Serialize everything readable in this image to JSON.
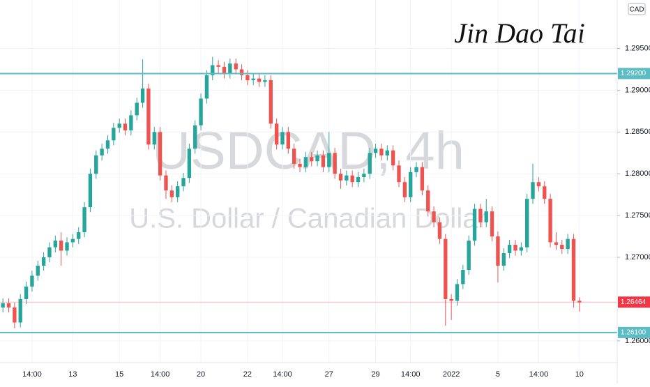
{
  "chart_data": {
    "type": "candlestick",
    "title": "USDCAD, 4h",
    "subtitle": "U.S. Dollar / Canadian Dollar",
    "author": "Jin Dao Tai",
    "currency": "CAD",
    "up_color": "#26a69a",
    "down_color": "#ef5350",
    "ylim": [
      1.2574,
      1.3008
    ],
    "yticks": [
      {
        "value": 1.295,
        "label": "1.29500"
      },
      {
        "value": 1.29,
        "label": "1.29000"
      },
      {
        "value": 1.285,
        "label": "1.28500"
      },
      {
        "value": 1.28,
        "label": "1.28000"
      },
      {
        "value": 1.275,
        "label": "1.27500"
      },
      {
        "value": 1.27,
        "label": "1.27000"
      },
      {
        "value": 1.26,
        "label": "1.26000"
      }
    ],
    "levels": [
      {
        "value": 1.292,
        "label": "1.29200",
        "color": "#5bbcc4"
      },
      {
        "value": 1.261,
        "label": "1.26100",
        "color": "#5bbcc4"
      }
    ],
    "last_price": {
      "value": 1.26464,
      "label": "1.26464",
      "color": "#f23645"
    },
    "categories": [
      null,
      null,
      null,
      null,
      null,
      "14:00",
      null,
      null,
      null,
      null,
      null,
      null,
      "13",
      null,
      null,
      null,
      null,
      null,
      null,
      null,
      "15",
      null,
      null,
      null,
      null,
      null,
      null,
      "14:00",
      null,
      null,
      null,
      null,
      null,
      null,
      "20",
      null,
      null,
      null,
      null,
      null,
      null,
      null,
      "22",
      null,
      null,
      null,
      null,
      null,
      "14:00",
      null,
      null,
      null,
      null,
      null,
      null,
      null,
      "27",
      null,
      null,
      null,
      null,
      null,
      null,
      null,
      "29",
      null,
      null,
      null,
      null,
      null,
      "14:00",
      null,
      null,
      null,
      null,
      null,
      null,
      "2022",
      null,
      null,
      null,
      null,
      null,
      null,
      null,
      "5",
      null,
      null,
      null,
      null,
      null,
      null,
      "14:00",
      null,
      null,
      null,
      null,
      null,
      null,
      "10"
    ],
    "open": [
      1.264,
      1.2645,
      1.264,
      1.2622,
      1.265,
      1.2665,
      1.2678,
      1.269,
      1.27,
      1.2712,
      1.272,
      1.2708,
      1.2718,
      1.2722,
      1.273,
      1.276,
      1.28,
      1.2822,
      1.283,
      1.284,
      1.2855,
      1.286,
      1.2852,
      1.287,
      1.2885,
      1.2902,
      1.2835,
      1.285,
      1.2798,
      1.278,
      1.2772,
      1.2785,
      1.2795,
      1.283,
      1.2858,
      1.289,
      1.2918,
      1.293,
      1.2928,
      1.292,
      1.2932,
      1.2925,
      1.2918,
      1.2912,
      1.2914,
      1.291,
      1.2912,
      1.286,
      1.2835,
      1.285,
      1.283,
      1.2812,
      1.2808,
      1.282,
      1.2815,
      1.2822,
      1.2808,
      1.2825,
      1.28,
      1.2792,
      1.2798,
      1.279,
      1.2796,
      1.28,
      1.2825,
      1.283,
      1.2822,
      1.2828,
      1.281,
      1.279,
      1.2772,
      1.2802,
      1.2808,
      1.278,
      1.2755,
      1.2742,
      1.2722,
      1.265,
      1.2648,
      1.2668,
      1.2685,
      1.272,
      1.2758,
      1.2742,
      1.2755,
      1.2725,
      1.269,
      1.2705,
      1.2715,
      1.2708,
      1.2712,
      1.277,
      1.279,
      1.2785,
      1.277,
      1.2718,
      1.2715,
      1.271,
      1.2722,
      1.2648
    ],
    "high": [
      1.2651,
      1.2651,
      1.2646,
      1.2656,
      1.2671,
      1.2684,
      1.2696,
      1.2706,
      1.2718,
      1.2726,
      1.273,
      1.2724,
      1.2728,
      1.2736,
      1.2766,
      1.2806,
      1.2828,
      1.2836,
      1.2846,
      1.2861,
      1.2866,
      1.2866,
      1.2876,
      1.2891,
      1.2937,
      1.2908,
      1.2856,
      1.2856,
      1.2804,
      1.2786,
      1.2791,
      1.2801,
      1.2836,
      1.2864,
      1.2896,
      1.2924,
      1.294,
      1.2936,
      1.2934,
      1.2938,
      1.2938,
      1.2931,
      1.2924,
      1.292,
      1.292,
      1.2918,
      1.2918,
      1.2866,
      1.2856,
      1.2856,
      1.2836,
      1.2818,
      1.2826,
      1.2826,
      1.2828,
      1.2828,
      1.285,
      1.2831,
      1.2806,
      1.2804,
      1.2804,
      1.2802,
      1.2806,
      1.2831,
      1.2836,
      1.2836,
      1.2834,
      1.2834,
      1.2816,
      1.2796,
      1.2808,
      1.2814,
      1.2814,
      1.2786,
      1.2761,
      1.2748,
      1.2728,
      1.2656,
      1.2674,
      1.2691,
      1.2726,
      1.2764,
      1.2764,
      1.277,
      1.2761,
      1.2731,
      1.2711,
      1.2721,
      1.2721,
      1.2718,
      1.2776,
      1.2812,
      1.2796,
      1.2791,
      1.2776,
      1.273,
      1.2721,
      1.2728,
      1.2728,
      1.2652
    ],
    "low": [
      1.2634,
      1.2634,
      1.2615,
      1.2616,
      1.2644,
      1.2659,
      1.2672,
      1.2684,
      1.2694,
      1.2706,
      1.269,
      1.2702,
      1.2712,
      1.2716,
      1.2724,
      1.2754,
      1.2794,
      1.2816,
      1.2824,
      1.2834,
      1.2849,
      1.2846,
      1.2846,
      1.2864,
      1.2879,
      1.2829,
      1.2829,
      1.2792,
      1.277,
      1.2766,
      1.2766,
      1.2779,
      1.2789,
      1.2824,
      1.2852,
      1.2884,
      1.2912,
      1.292,
      1.2914,
      1.2914,
      1.2919,
      1.2912,
      1.2906,
      1.2906,
      1.2904,
      1.2904,
      1.2854,
      1.2829,
      1.2829,
      1.2824,
      1.2806,
      1.2802,
      1.2802,
      1.2809,
      1.2809,
      1.2802,
      1.2802,
      1.2794,
      1.2782,
      1.2786,
      1.2784,
      1.2784,
      1.279,
      1.2794,
      1.2819,
      1.2816,
      1.2816,
      1.2804,
      1.2784,
      1.2766,
      1.2766,
      1.2796,
      1.2774,
      1.2749,
      1.2736,
      1.2716,
      1.2618,
      1.2625,
      1.2642,
      1.2662,
      1.2679,
      1.2714,
      1.2736,
      1.2736,
      1.2719,
      1.267,
      1.2684,
      1.2699,
      1.2702,
      1.2702,
      1.2706,
      1.2764,
      1.2779,
      1.2764,
      1.2712,
      1.2709,
      1.2704,
      1.2704,
      1.264,
      1.2635
    ],
    "close": [
      1.2645,
      1.264,
      1.2622,
      1.265,
      1.2665,
      1.2678,
      1.269,
      1.27,
      1.2712,
      1.272,
      1.2708,
      1.2718,
      1.2722,
      1.273,
      1.276,
      1.28,
      1.2822,
      1.283,
      1.284,
      1.2855,
      1.286,
      1.2852,
      1.287,
      1.2885,
      1.2902,
      1.2835,
      1.285,
      1.2798,
      1.278,
      1.2772,
      1.2785,
      1.2795,
      1.283,
      1.2858,
      1.289,
      1.2918,
      1.293,
      1.2928,
      1.292,
      1.2932,
      1.2925,
      1.2918,
      1.2912,
      1.2914,
      1.291,
      1.2912,
      1.286,
      1.2835,
      1.285,
      1.283,
      1.2812,
      1.2808,
      1.282,
      1.2815,
      1.2822,
      1.2808,
      1.2825,
      1.28,
      1.2792,
      1.2798,
      1.279,
      1.2796,
      1.28,
      1.2825,
      1.283,
      1.2822,
      1.2828,
      1.281,
      1.279,
      1.2772,
      1.2802,
      1.2808,
      1.278,
      1.2755,
      1.2742,
      1.2722,
      1.265,
      1.2648,
      1.2668,
      1.2685,
      1.272,
      1.2758,
      1.2742,
      1.2755,
      1.2725,
      1.269,
      1.2705,
      1.2715,
      1.2708,
      1.2712,
      1.277,
      1.279,
      1.2785,
      1.277,
      1.2718,
      1.2715,
      1.271,
      1.2722,
      1.2648,
      1.2646
    ]
  }
}
